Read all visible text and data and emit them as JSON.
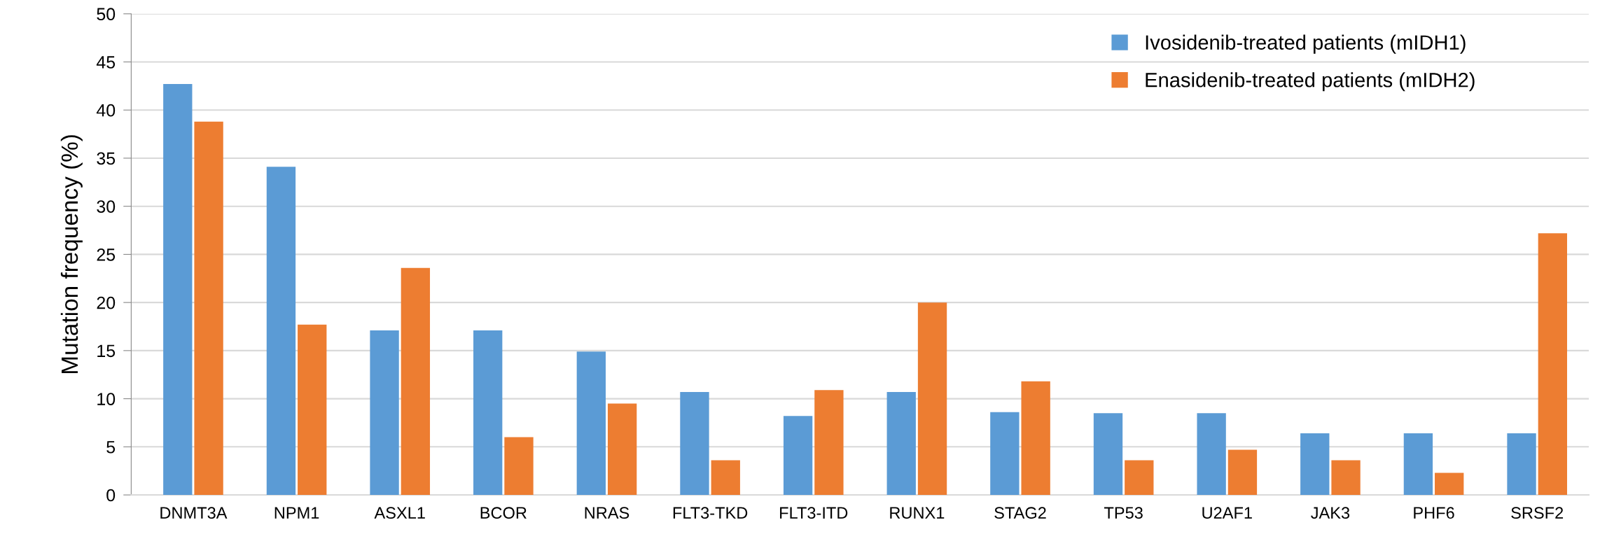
{
  "chart_data": {
    "type": "bar",
    "ylabel": "Mutation frequency (%)",
    "categories": [
      "DNMT3A",
      "NPM1",
      "ASXL1",
      "BCOR",
      "NRAS",
      "FLT3-TKD",
      "FLT3-ITD",
      "RUNX1",
      "STAG2",
      "TP53",
      "U2AF1",
      "JAK3",
      "PHF6",
      "SRSF2"
    ],
    "series": [
      {
        "name": "Ivosidenib-treated patients (mIDH1)",
        "color": "#5b9bd5",
        "values": [
          42.7,
          34.1,
          17.1,
          17.1,
          14.9,
          10.7,
          8.2,
          10.7,
          8.6,
          8.5,
          8.5,
          6.4,
          6.4,
          6.4
        ]
      },
      {
        "name": "Enasidenib-treated patients (mIDH2)",
        "color": "#ed7d31",
        "values": [
          38.8,
          17.7,
          23.6,
          6.0,
          9.5,
          3.6,
          10.9,
          20.0,
          11.8,
          3.6,
          4.7,
          3.6,
          2.3,
          27.2
        ]
      }
    ],
    "ylim": [
      0,
      50
    ],
    "yticks": [
      0,
      5,
      10,
      15,
      20,
      25,
      30,
      35,
      40,
      45,
      50
    ],
    "grid": "y",
    "legend": "top right"
  }
}
